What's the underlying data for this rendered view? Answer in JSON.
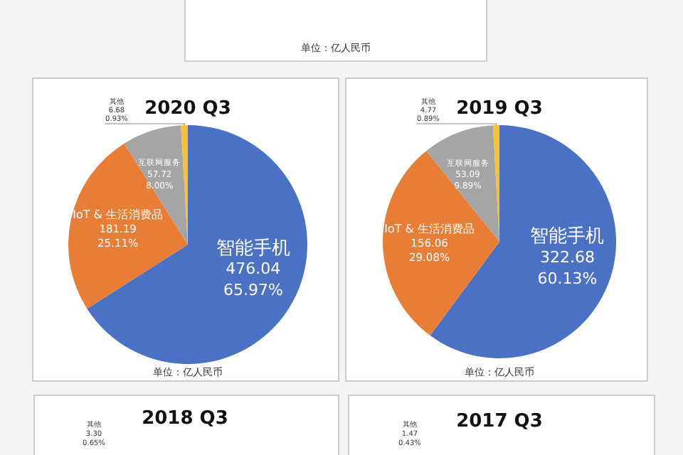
{
  "chart_data": [
    {
      "type": "other",
      "annotations": [
        "单位：亿人民币"
      ]
    },
    {
      "type": "pie",
      "title": "2020 Q3",
      "categories": [
        "智能手机",
        "IoT & 生活消费品",
        "互联网服务",
        "其他"
      ],
      "values": [
        476.04,
        181.19,
        57.72,
        6.68
      ],
      "value_labels": [
        "476.04\n65.97%",
        "181.19\n25.11%",
        "57.72\n8.00%",
        "6.68\n0.93%"
      ],
      "colors": [
        "#4a72c4",
        "#e87d35",
        "#a5a5a5",
        "#f5c231"
      ],
      "annotations": [
        "单位：亿人民币"
      ]
    },
    {
      "type": "pie",
      "title": "2019 Q3",
      "categories": [
        "智能手机",
        "IoT & 生活消费品",
        "互联网服务",
        "其他"
      ],
      "values": [
        322.68,
        156.06,
        53.09,
        4.77
      ],
      "value_labels": [
        "322.68\n60.13%",
        "156.06\n29.08%",
        "53.09\n9.89%",
        "4.77\n0.89%"
      ],
      "colors": [
        "#4a72c4",
        "#e87d35",
        "#a5a5a5",
        "#f5c231"
      ],
      "annotations": [
        "单位：亿人民币"
      ]
    },
    {
      "type": "other",
      "title": "2018 Q3",
      "annotations": [
        "其他",
        "3.30",
        "0.65%"
      ]
    },
    {
      "type": "other",
      "title": "2017 Q3",
      "annotations": [
        "其他",
        "1.47",
        "0.43%"
      ]
    }
  ]
}
